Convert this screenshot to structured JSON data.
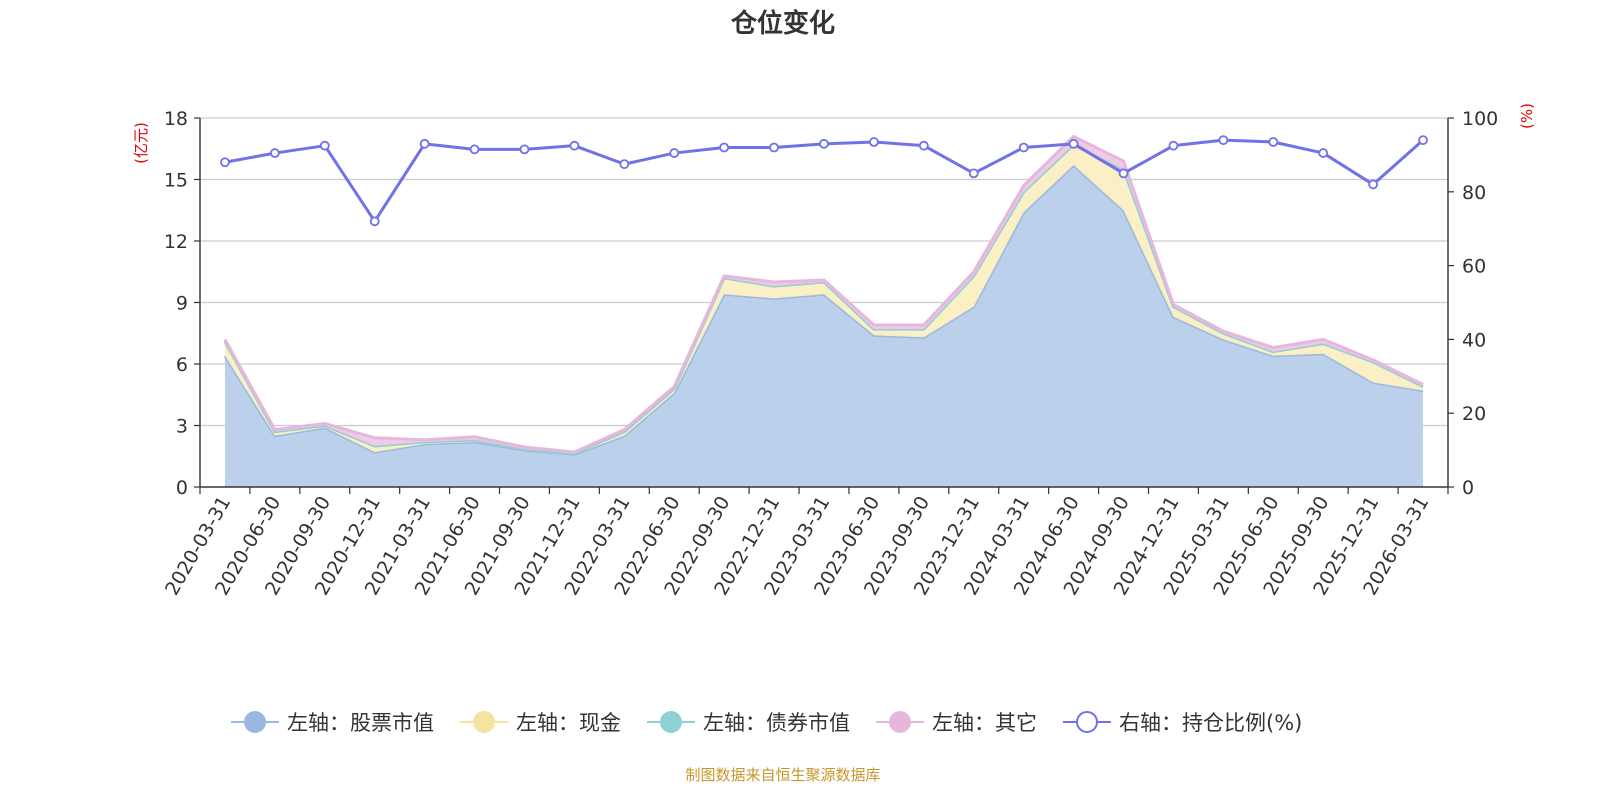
{
  "chart_data": {
    "type": "area",
    "title": "仓位变化",
    "left_unit": "(亿元)",
    "right_unit": "(%)",
    "y_left": {
      "min": 0,
      "max": 18,
      "ticks": [
        0,
        3,
        6,
        9,
        12,
        15,
        18
      ]
    },
    "y_right": {
      "min": 0,
      "max": 100,
      "ticks": [
        0,
        20,
        40,
        60,
        80,
        100
      ]
    },
    "grid": true,
    "legend_position": "bottom",
    "categories": [
      "2020-03-31",
      "2020-06-30",
      "2020-09-30",
      "2020-12-31",
      "2021-03-31",
      "2021-06-30",
      "2021-09-30",
      "2021-12-31",
      "2022-03-31",
      "2022-06-30",
      "2022-09-30",
      "2022-12-31",
      "2023-03-31",
      "2023-06-30",
      "2023-09-30",
      "2023-12-31",
      "2024-03-31",
      "2024-06-30",
      "2024-09-30",
      "2024-12-31",
      "2025-03-31",
      "2025-06-30",
      "2025-09-30",
      "2025-12-31",
      "2026-03-31"
    ],
    "series": [
      {
        "name": "左轴：股票市值",
        "axis": "left",
        "color": "#9bb8e0",
        "fill": "#b7cdea",
        "values": [
          6.4,
          2.5,
          2.9,
          1.7,
          2.1,
          2.2,
          1.8,
          1.6,
          2.5,
          4.6,
          9.4,
          9.2,
          9.4,
          7.4,
          7.3,
          8.8,
          13.4,
          15.7,
          13.5,
          8.3,
          7.2,
          6.4,
          6.5,
          5.1,
          4.7
        ]
      },
      {
        "name": "左轴：现金",
        "axis": "left",
        "color": "#f5e3a0",
        "fill": "#fbefc2",
        "values": [
          0.7,
          0.2,
          0.1,
          0.3,
          0.1,
          0.1,
          0.05,
          0.05,
          0.2,
          0.2,
          0.8,
          0.6,
          0.6,
          0.3,
          0.4,
          1.5,
          1.0,
          1.0,
          2.0,
          0.5,
          0.3,
          0.2,
          0.5,
          1.0,
          0.2
        ]
      },
      {
        "name": "左轴：债券市值",
        "axis": "left",
        "color": "#8fd0d4",
        "fill": "#b0e0e3",
        "values": [
          0,
          0,
          0,
          0,
          0,
          0,
          0,
          0,
          0,
          0,
          0,
          0,
          0,
          0,
          0,
          0,
          0,
          0,
          0,
          0,
          0,
          0,
          0,
          0,
          0
        ]
      },
      {
        "name": "左轴：其它",
        "axis": "left",
        "color": "#e8b6dc",
        "fill": "#efc8e6",
        "values": [
          0.1,
          0.1,
          0.1,
          0.4,
          0.1,
          0.15,
          0.1,
          0.05,
          0.1,
          0.1,
          0.1,
          0.2,
          0.1,
          0.2,
          0.2,
          0.2,
          0.3,
          0.4,
          0.4,
          0.1,
          0.1,
          0.2,
          0.2,
          0.1,
          0.1
        ]
      },
      {
        "name": "右轴：持仓比例(%)",
        "axis": "right",
        "type": "line",
        "color": "#7072e6",
        "values": [
          88,
          90.5,
          92.5,
          72,
          93,
          91.5,
          91.5,
          92.5,
          87.5,
          90.5,
          92,
          92,
          93,
          93.5,
          92.5,
          85,
          92,
          93,
          85,
          92.5,
          94,
          93.5,
          90.5,
          82,
          94
        ]
      }
    ],
    "footer": "制图数据来自恒生聚源数据库"
  }
}
